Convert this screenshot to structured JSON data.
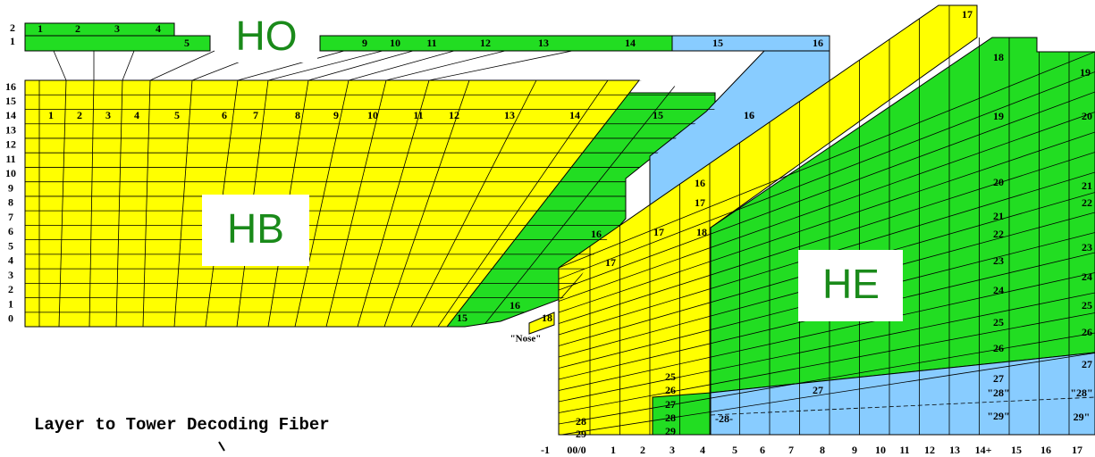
{
  "regions": {
    "ho": "HO",
    "hb": "HB",
    "he": "HE"
  },
  "caption": "Layer to Tower Decoding Fiber",
  "nose_label": "\"Nose\"",
  "ho_layer_labels": [
    "2",
    "1"
  ],
  "ho_tower_labels_top": [
    "1",
    "2",
    "3",
    "4"
  ],
  "ho_tower_labels_bottom": [
    "5",
    "9",
    "10",
    "11",
    "12",
    "13",
    "14",
    "15",
    "16"
  ],
  "hb_layer_labels": [
    "16",
    "15",
    "14",
    "13",
    "12",
    "11",
    "10",
    "9",
    "8",
    "7",
    "6",
    "5",
    "4",
    "3",
    "2",
    "1",
    "0"
  ],
  "hb_tower_labels": [
    "1",
    "2",
    "3",
    "4",
    "5",
    "6",
    "7",
    "8",
    "9",
    "10",
    "11",
    "12",
    "13",
    "14",
    "15",
    "16"
  ],
  "misc_labels": [
    "17",
    "15",
    "16",
    "18",
    "16",
    "17",
    "18",
    "17",
    "17",
    "16",
    "16",
    "27",
    "-28-"
  ],
  "he_inner_labels": [
    "18",
    "19",
    "20",
    "21",
    "22",
    "23",
    "24",
    "25",
    "26",
    "27",
    "\"28\"",
    "\"29\""
  ],
  "he_outer_labels": [
    "19",
    "20",
    "21",
    "22",
    "23",
    "24",
    "25",
    "26",
    "27",
    "\"28\"",
    "29\""
  ],
  "he_left_labels": [
    "25",
    "26",
    "27",
    "28",
    "29"
  ],
  "he_corner_labels": [
    "28",
    "29"
  ],
  "bottom_axis_labels": [
    "-1",
    "00/0",
    "1",
    "2",
    "3",
    "4",
    "5",
    "6",
    "7",
    "8",
    "9",
    "10",
    "11",
    "12",
    "13",
    "14+",
    "15",
    "16",
    "17"
  ]
}
